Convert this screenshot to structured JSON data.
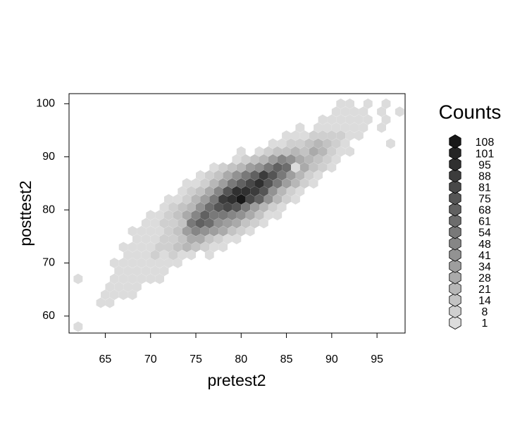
{
  "chart_data": {
    "type": "hexbin",
    "xlabel": "pretest2",
    "ylabel": "posttest2",
    "xlim": [
      61,
      98.1
    ],
    "ylim": [
      56.8,
      101.9
    ],
    "xticks": [
      65,
      70,
      75,
      80,
      85,
      90,
      95
    ],
    "yticks": [
      60,
      70,
      80,
      90,
      100
    ],
    "legend_title": "Counts",
    "legend_levels": [
      1,
      8,
      14,
      21,
      28,
      34,
      41,
      48,
      54,
      61,
      68,
      75,
      81,
      88,
      95,
      101,
      108
    ],
    "legend_colors": [
      "#dcdcdc",
      "#cfcfcf",
      "#c3c3c3",
      "#b7b7b7",
      "#aaaaaa",
      "#9e9e9e",
      "#929292",
      "#868686",
      "#797979",
      "#6d6d6d",
      "#616161",
      "#555555",
      "#484848",
      "#3c3c3c",
      "#303030",
      "#242424",
      "#181818"
    ],
    "cells": [
      [
        62,
        58,
        1
      ],
      [
        64.5,
        62.5,
        1
      ],
      [
        65.5,
        62.5,
        1
      ],
      [
        65,
        64,
        1
      ],
      [
        66,
        64,
        2
      ],
      [
        67,
        64,
        1
      ],
      [
        68,
        64,
        1
      ],
      [
        65.5,
        65.5,
        1
      ],
      [
        66.5,
        65.5,
        3
      ],
      [
        67.5,
        65.5,
        2
      ],
      [
        68.5,
        65.5,
        1
      ],
      [
        62,
        67,
        1
      ],
      [
        66,
        67,
        2
      ],
      [
        67,
        67,
        4
      ],
      [
        68,
        67,
        3
      ],
      [
        69,
        67,
        2
      ],
      [
        70,
        67,
        1
      ],
      [
        71,
        67,
        1
      ],
      [
        66.5,
        68.5,
        2
      ],
      [
        67.5,
        68.5,
        4
      ],
      [
        68.5,
        68.5,
        5
      ],
      [
        69.5,
        68.5,
        4
      ],
      [
        70.5,
        68.5,
        3
      ],
      [
        71.5,
        68.5,
        1
      ],
      [
        66,
        70,
        1
      ],
      [
        67,
        70,
        3
      ],
      [
        68,
        70,
        5
      ],
      [
        69,
        70,
        6
      ],
      [
        70,
        70,
        5
      ],
      [
        71,
        70,
        4
      ],
      [
        72,
        70,
        2
      ],
      [
        73,
        70,
        1
      ],
      [
        67.5,
        71.5,
        2
      ],
      [
        68.5,
        71.5,
        4
      ],
      [
        69.5,
        71.5,
        6
      ],
      [
        70.5,
        71.5,
        8
      ],
      [
        71.5,
        71.5,
        7
      ],
      [
        72.5,
        71.5,
        9
      ],
      [
        73.5,
        71.5,
        6
      ],
      [
        74.5,
        71.5,
        3
      ],
      [
        76.5,
        71.5,
        1
      ],
      [
        67,
        73,
        1
      ],
      [
        68,
        73,
        2
      ],
      [
        69,
        73,
        5
      ],
      [
        70,
        73,
        7
      ],
      [
        71,
        73,
        9
      ],
      [
        72,
        73,
        12
      ],
      [
        73,
        73,
        15
      ],
      [
        74,
        73,
        22
      ],
      [
        75,
        73,
        14
      ],
      [
        76,
        73,
        8
      ],
      [
        77,
        73,
        4
      ],
      [
        78,
        73,
        2
      ],
      [
        68.5,
        74.5,
        2
      ],
      [
        69.5,
        74.5,
        4
      ],
      [
        70.5,
        74.5,
        6
      ],
      [
        71.5,
        74.5,
        9
      ],
      [
        72.5,
        74.5,
        13
      ],
      [
        73.5,
        74.5,
        18
      ],
      [
        74.5,
        74.5,
        30
      ],
      [
        75.5,
        74.5,
        28
      ],
      [
        76.5,
        74.5,
        20
      ],
      [
        77.5,
        74.5,
        12
      ],
      [
        78.5,
        74.5,
        6
      ],
      [
        79.5,
        74.5,
        2
      ],
      [
        68,
        76,
        1
      ],
      [
        69,
        76,
        3
      ],
      [
        70,
        76,
        5
      ],
      [
        71,
        76,
        7
      ],
      [
        72,
        76,
        11
      ],
      [
        73,
        76,
        18
      ],
      [
        74,
        76,
        35
      ],
      [
        75,
        76,
        50
      ],
      [
        76,
        76,
        45
      ],
      [
        77,
        76,
        40
      ],
      [
        78,
        76,
        28
      ],
      [
        79,
        76,
        16
      ],
      [
        80,
        76,
        8
      ],
      [
        81,
        76,
        3
      ],
      [
        69.5,
        77.5,
        2
      ],
      [
        70.5,
        77.5,
        4
      ],
      [
        71.5,
        77.5,
        8
      ],
      [
        72.5,
        77.5,
        12
      ],
      [
        73.5,
        77.5,
        20
      ],
      [
        74.5,
        77.5,
        55
      ],
      [
        75.5,
        77.5,
        70
      ],
      [
        76.5,
        77.5,
        62
      ],
      [
        77.5,
        77.5,
        45
      ],
      [
        78.5,
        77.5,
        35
      ],
      [
        79.5,
        77.5,
        30
      ],
      [
        80.5,
        77.5,
        18
      ],
      [
        81.5,
        77.5,
        8
      ],
      [
        82.5,
        77.5,
        3
      ],
      [
        70,
        79,
        2
      ],
      [
        71,
        79,
        5
      ],
      [
        72,
        79,
        9
      ],
      [
        73,
        79,
        15
      ],
      [
        74,
        79,
        28
      ],
      [
        75,
        79,
        48
      ],
      [
        76,
        79,
        70
      ],
      [
        77,
        79,
        60
      ],
      [
        78,
        79,
        55
      ],
      [
        79,
        79,
        50
      ],
      [
        80,
        79,
        42
      ],
      [
        81,
        79,
        30
      ],
      [
        82,
        79,
        16
      ],
      [
        83,
        79,
        7
      ],
      [
        84,
        79,
        3
      ],
      [
        71.5,
        80.5,
        3
      ],
      [
        72.5,
        80.5,
        8
      ],
      [
        73.5,
        80.5,
        14
      ],
      [
        74.5,
        80.5,
        25
      ],
      [
        75.5,
        80.5,
        45
      ],
      [
        76.5,
        80.5,
        65
      ],
      [
        77.5,
        80.5,
        80
      ],
      [
        78.5,
        80.5,
        85
      ],
      [
        79.5,
        80.5,
        75
      ],
      [
        80.5,
        80.5,
        60
      ],
      [
        81.5,
        80.5,
        40
      ],
      [
        82.5,
        80.5,
        25
      ],
      [
        83.5,
        80.5,
        10
      ],
      [
        84.5,
        80.5,
        4
      ],
      [
        72,
        82,
        2
      ],
      [
        73,
        82,
        6
      ],
      [
        74,
        82,
        12
      ],
      [
        75,
        82,
        22
      ],
      [
        76,
        82,
        40
      ],
      [
        77,
        82,
        58
      ],
      [
        78,
        82,
        88
      ],
      [
        79,
        82,
        100
      ],
      [
        80,
        82,
        108
      ],
      [
        81,
        82,
        85
      ],
      [
        82,
        82,
        70
      ],
      [
        83,
        82,
        45
      ],
      [
        84,
        82,
        22
      ],
      [
        85,
        82,
        9
      ],
      [
        86,
        82,
        3
      ],
      [
        73.5,
        83.5,
        4
      ],
      [
        74.5,
        83.5,
        9
      ],
      [
        75.5,
        83.5,
        18
      ],
      [
        76.5,
        83.5,
        32
      ],
      [
        77.5,
        83.5,
        50
      ],
      [
        78.5,
        83.5,
        80
      ],
      [
        79.5,
        83.5,
        95
      ],
      [
        80.5,
        83.5,
        100
      ],
      [
        81.5,
        83.5,
        90
      ],
      [
        82.5,
        83.5,
        75
      ],
      [
        83.5,
        83.5,
        45
      ],
      [
        84.5,
        83.5,
        25
      ],
      [
        85.5,
        83.5,
        12
      ],
      [
        86.5,
        83.5,
        5
      ],
      [
        74,
        85,
        2
      ],
      [
        75,
        85,
        6
      ],
      [
        76,
        85,
        12
      ],
      [
        77,
        85,
        25
      ],
      [
        78,
        85,
        40
      ],
      [
        79,
        85,
        55
      ],
      [
        80,
        85,
        70
      ],
      [
        81,
        85,
        85
      ],
      [
        82,
        85,
        95
      ],
      [
        83,
        85,
        80
      ],
      [
        84,
        85,
        60
      ],
      [
        85,
        85,
        40
      ],
      [
        86,
        85,
        22
      ],
      [
        87,
        85,
        10
      ],
      [
        88,
        85,
        4
      ],
      [
        75.5,
        86.5,
        3
      ],
      [
        76.5,
        86.5,
        8
      ],
      [
        77.5,
        86.5,
        16
      ],
      [
        78.5,
        86.5,
        28
      ],
      [
        79.5,
        86.5,
        42
      ],
      [
        80.5,
        86.5,
        55
      ],
      [
        81.5,
        86.5,
        68
      ],
      [
        82.5,
        86.5,
        88
      ],
      [
        83.5,
        86.5,
        75
      ],
      [
        84.5,
        86.5,
        55
      ],
      [
        85.5,
        86.5,
        35
      ],
      [
        86.5,
        86.5,
        25
      ],
      [
        87.5,
        86.5,
        12
      ],
      [
        88.5,
        86.5,
        5
      ],
      [
        77,
        88,
        4
      ],
      [
        78,
        88,
        10
      ],
      [
        79,
        88,
        18
      ],
      [
        80,
        88,
        25
      ],
      [
        81,
        88,
        35
      ],
      [
        82,
        88,
        45
      ],
      [
        83,
        88,
        60
      ],
      [
        84,
        88,
        70
      ],
      [
        85,
        88,
        65
      ],
      [
        86,
        88,
        1
      ],
      [
        87,
        88,
        28
      ],
      [
        88,
        88,
        20
      ],
      [
        89,
        88,
        12
      ],
      [
        90,
        88,
        5
      ],
      [
        79.5,
        89.5,
        5
      ],
      [
        80.5,
        89.5,
        10
      ],
      [
        81.5,
        89.5,
        15
      ],
      [
        82.5,
        89.5,
        25
      ],
      [
        83.5,
        89.5,
        40
      ],
      [
        84.5,
        89.5,
        50
      ],
      [
        85.5,
        89.5,
        45
      ],
      [
        86.5,
        89.5,
        30
      ],
      [
        87.5,
        89.5,
        25
      ],
      [
        88.5,
        89.5,
        20
      ],
      [
        89.5,
        89.5,
        10
      ],
      [
        90.5,
        89.5,
        4
      ],
      [
        80,
        91,
        2
      ],
      [
        82,
        91,
        6
      ],
      [
        83,
        91,
        10
      ],
      [
        84,
        91,
        15
      ],
      [
        85,
        91,
        20
      ],
      [
        86,
        91,
        25
      ],
      [
        87,
        91,
        20
      ],
      [
        88,
        91,
        30
      ],
      [
        89,
        91,
        22
      ],
      [
        90,
        91,
        10
      ],
      [
        91,
        91,
        5
      ],
      [
        92,
        91,
        2
      ],
      [
        83.5,
        92.5,
        4
      ],
      [
        84.5,
        92.5,
        7
      ],
      [
        85.5,
        92.5,
        10
      ],
      [
        86.5,
        92.5,
        12
      ],
      [
        87.5,
        92.5,
        18
      ],
      [
        88.5,
        92.5,
        25
      ],
      [
        89.5,
        92.5,
        16
      ],
      [
        90.5,
        92.5,
        8
      ],
      [
        91.5,
        92.5,
        4
      ],
      [
        96.5,
        92.5,
        1
      ],
      [
        85,
        94,
        2
      ],
      [
        86,
        94,
        3
      ],
      [
        87,
        94,
        6
      ],
      [
        88,
        94,
        8
      ],
      [
        89,
        94,
        10
      ],
      [
        90,
        94,
        12
      ],
      [
        91,
        94,
        8
      ],
      [
        92,
        94,
        5
      ],
      [
        93,
        94,
        2
      ],
      [
        86.5,
        95.5,
        1
      ],
      [
        88.5,
        95.5,
        3
      ],
      [
        89.5,
        95.5,
        5
      ],
      [
        90.5,
        95.5,
        6
      ],
      [
        91.5,
        95.5,
        4
      ],
      [
        92.5,
        95.5,
        3
      ],
      [
        93.5,
        95.5,
        2
      ],
      [
        95.5,
        95.5,
        1
      ],
      [
        89,
        97,
        2
      ],
      [
        90,
        97,
        3
      ],
      [
        91,
        97,
        4
      ],
      [
        92,
        97,
        3
      ],
      [
        93,
        97,
        2
      ],
      [
        94,
        97,
        1
      ],
      [
        96,
        97,
        1
      ],
      [
        90.5,
        98.5,
        2
      ],
      [
        91.5,
        98.5,
        1
      ],
      [
        92.5,
        98.5,
        2
      ],
      [
        93.5,
        98.5,
        1
      ],
      [
        95.5,
        98.5,
        1
      ],
      [
        97.5,
        98.5,
        1
      ],
      [
        91,
        100,
        1
      ],
      [
        92,
        100,
        1
      ],
      [
        94,
        100,
        1
      ],
      [
        96,
        100,
        1
      ]
    ]
  }
}
